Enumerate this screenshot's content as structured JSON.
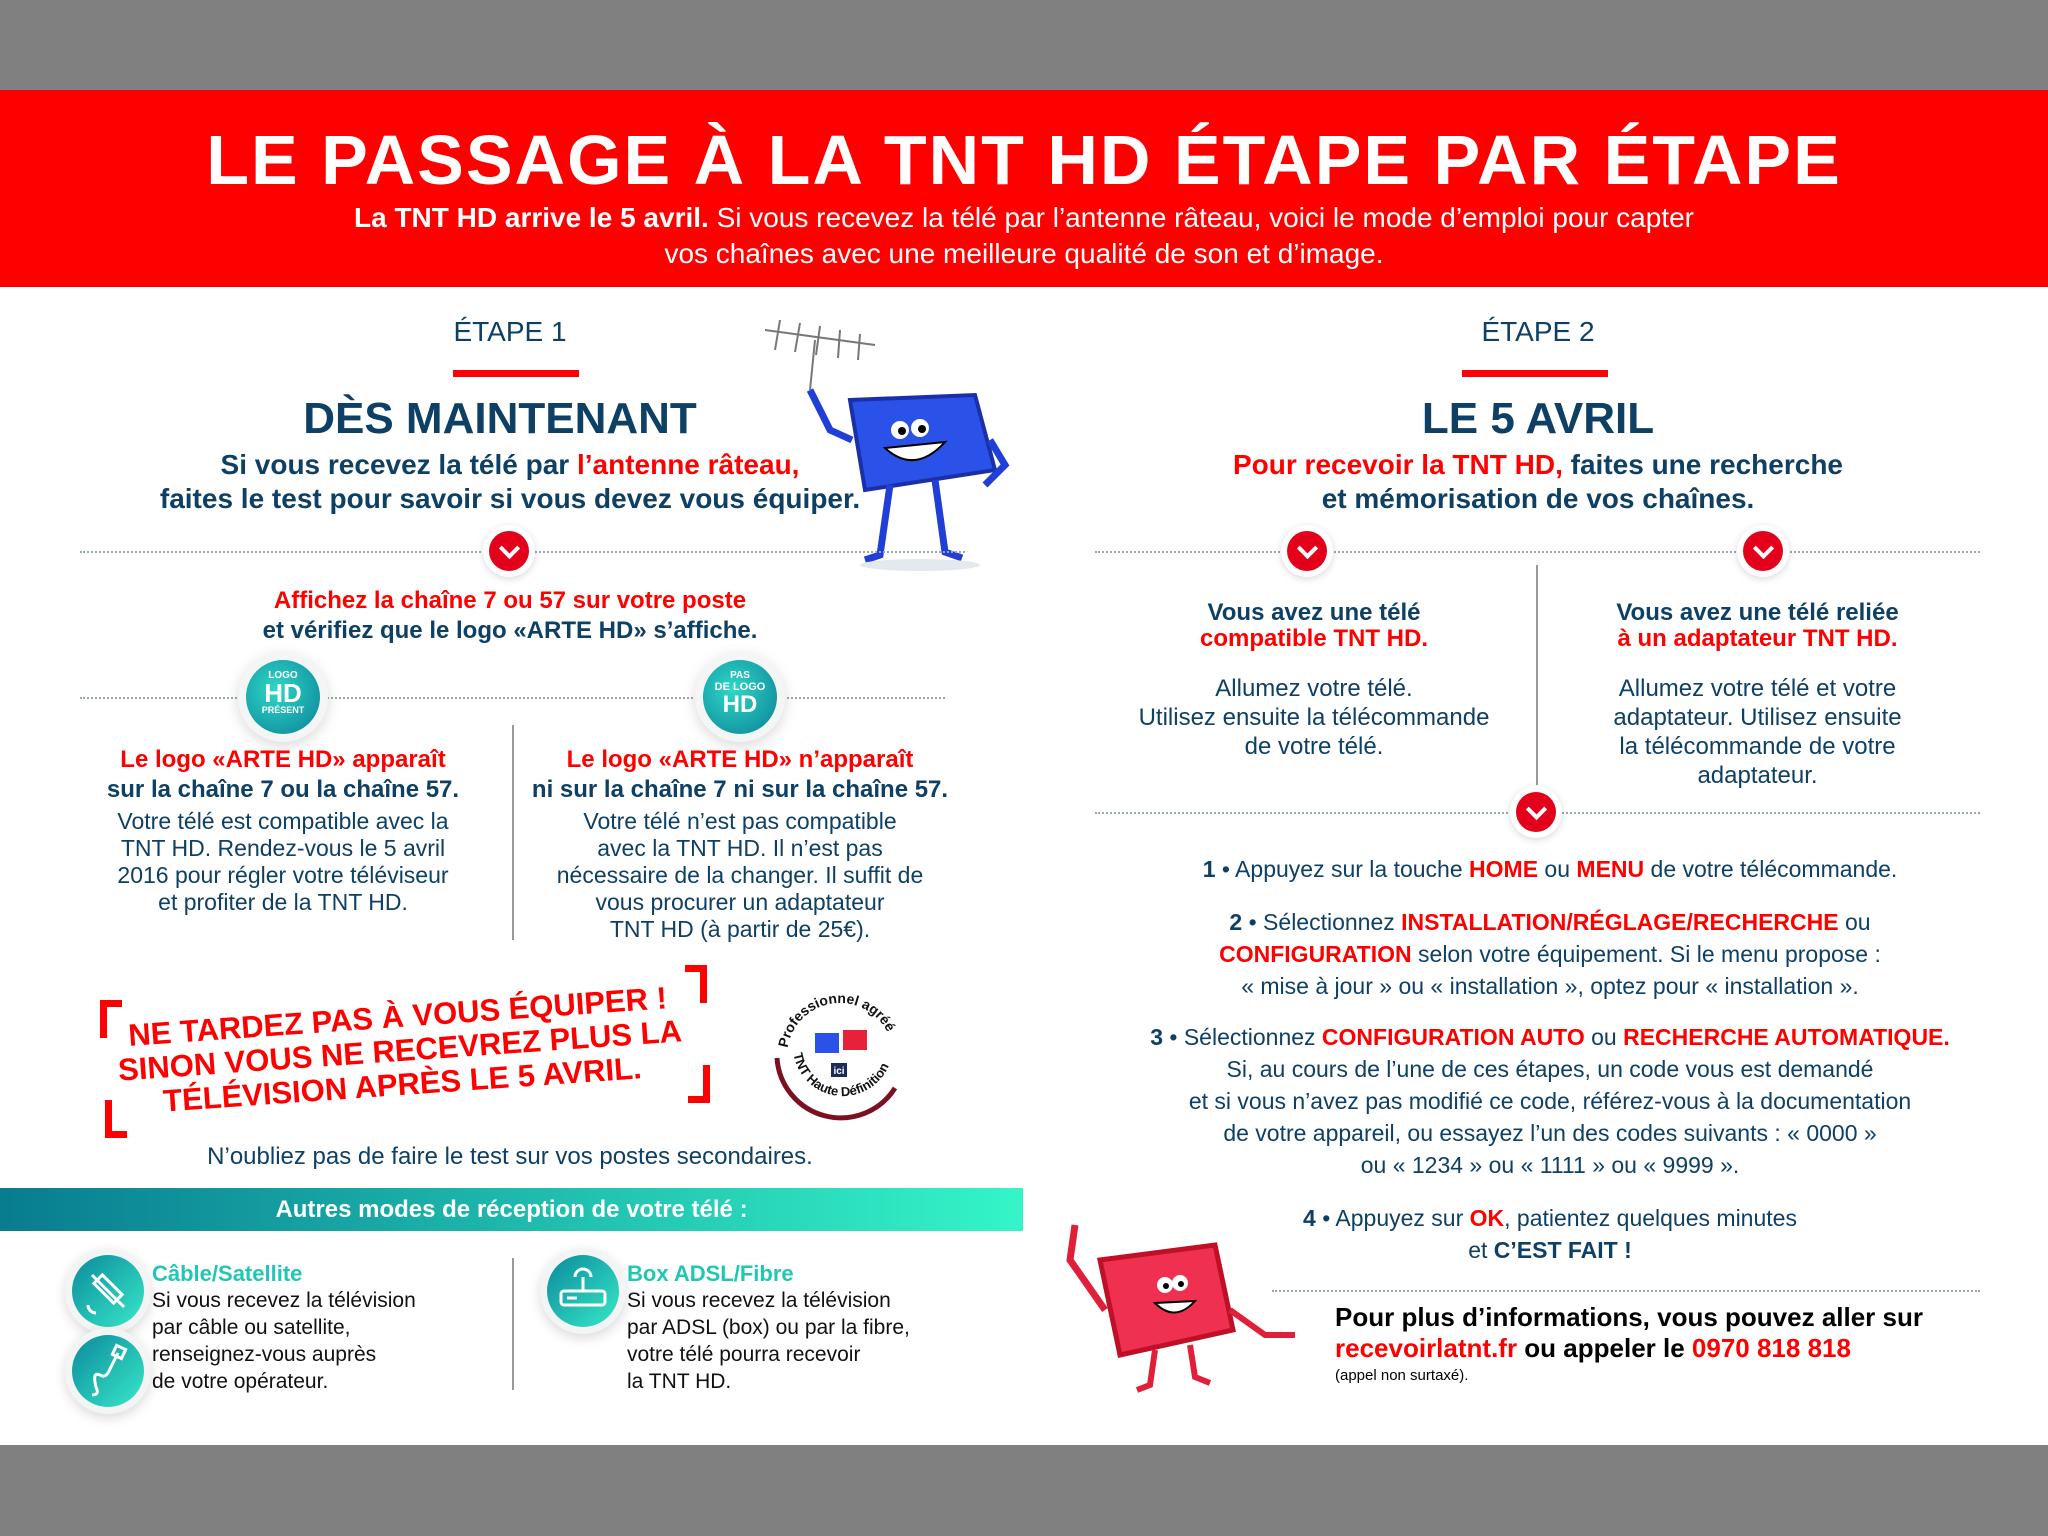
{
  "header": {
    "title": "LE PASSAGE À LA TNT  HD ÉTAPE PAR ÉTAPE",
    "subtitle_bold": "La TNT HD arrive le 5 avril.",
    "subtitle_1": " Si vous recevez la télé par  l’antenne râteau, voici le mode d’emploi pour capter",
    "subtitle_2": "vos chaînes avec une meilleure  qualité de son et d’image."
  },
  "step1": {
    "label": "ÉTAPE 1",
    "title": "DÈS MAINTENANT",
    "intro_1a": "Si vous recevez la télé par ",
    "intro_1b": "l’antenne râteau,",
    "intro_2": "faites le test pour savoir si vous devez vous équiper.",
    "check_1": "Affichez la chaîne 7 ou 57 sur votre poste",
    "check_2": "et vérifiez que le logo «ARTE HD» s’affiche.",
    "badge_left": [
      "LOGO",
      "HD",
      "PRÉSENT"
    ],
    "badge_right": [
      "PAS",
      "DE LOGO",
      "HD"
    ],
    "left": {
      "h1": "Le logo «ARTE HD» apparaît",
      "h2": "sur la chaîne 7 ou la chaîne 57.",
      "lines": [
        "Votre télé est compatible avec la",
        "TNT HD. Rendez-vous le 5 avril",
        "2016 pour régler votre téléviseur",
        "et profiter de la TNT HD."
      ]
    },
    "right": {
      "h1": "Le logo «ARTE HD» n’apparaît",
      "h2": "ni sur la chaîne 7 ni sur la chaîne 57.",
      "lines": [
        "Votre télé n’est pas compatible",
        "avec la TNT HD. Il n’est pas",
        "nécessaire de la changer. Il suffit de",
        "vous procurer un adaptateur",
        "TNT HD (à partir de 25€)."
      ]
    },
    "warning": [
      "NE TARDEZ PAS À VOUS ÉQUIPER !",
      "SINON VOUS NE RECEVREZ PLUS LA",
      "TÉLÉVISION APRÈS LE 5 AVRIL."
    ],
    "seal": {
      "top": "Professionnel agréé",
      "bottom": "TNT Haute Définition",
      "center": "ici"
    },
    "reminder": "N’oubliez pas de faire le test sur vos postes secondaires."
  },
  "other": {
    "title": "Autres modes de réception de votre télé :",
    "cable": {
      "title": "Câble/Satellite",
      "lines": [
        "Si vous recevez la télévision",
        "par câble ou satellite,",
        "renseignez-vous auprès",
        "de votre opérateur."
      ]
    },
    "box": {
      "title": "Box ADSL/Fibre",
      "lines": [
        "Si vous recevez la télévision",
        "par ADSL (box) ou par la fibre,",
        "votre télé pourra recevoir",
        "la TNT HD."
      ]
    }
  },
  "step2": {
    "label": "ÉTAPE 2",
    "title": "LE 5 AVRIL",
    "intro_1a": "Pour recevoir la TNT HD,",
    "intro_1b": " faites une recherche",
    "intro_2": "et mémorisation de vos chaînes.",
    "left": {
      "h1": "Vous avez une télé",
      "h2": "compatible TNT HD.",
      "lines": [
        "Allumez votre télé.",
        "Utilisez ensuite la télécommande",
        "de votre télé."
      ]
    },
    "right": {
      "h1": "Vous avez une télé reliée",
      "h2": "à un adaptateur TNT HD.",
      "lines": [
        "Allumez votre télé et votre",
        "adaptateur. Utilisez ensuite",
        "la télécommande de votre",
        "adaptateur."
      ]
    },
    "s1": {
      "n": "1",
      "a": " Appuyez sur la touche ",
      "k1": "HOME",
      "b": " ou ",
      "k2": "MENU",
      "c": " de votre télécommande."
    },
    "s2": {
      "n": "2",
      "a": " Sélectionnez ",
      "k1": "INSTALLATION/RÉGLAGE/RECHERCHE",
      "b": " ou",
      "k2": "CONFIGURATION",
      "c": " selon votre équipement. Si le menu propose :",
      "d": "« mise à jour » ou « installation », optez pour « installation »."
    },
    "s3": {
      "n": "3",
      "a": " Sélectionnez ",
      "k1": "CONFIGURATION AUTO",
      "b": " ou ",
      "k2": "RECHERCHE AUTOMATIQUE.",
      "lines": [
        "Si, au cours de l’une de ces étapes, un code vous est demandé",
        "et si vous n’avez pas modifié ce code, référez-vous à la documentation",
        "de votre appareil, ou essayez l’un des codes suivants : « 0000 »",
        "ou « 1234 » ou « 1111 » ou « 9999 »."
      ]
    },
    "s4": {
      "n": "4",
      "a": " Appuyez sur ",
      "k1": "OK",
      "b": ", patientez quelques minutes",
      "c": "et ",
      "k2": "C’EST FAIT !"
    },
    "info": {
      "a": "Pour plus d’informations, vous pouvez aller sur",
      "link": "recevoirlatnt.fr",
      "b": " ou appeler le ",
      "phone": "0970 818 818",
      "note": "(appel non surtaxé)."
    }
  },
  "colors": {
    "red": "#ff0000",
    "navy": "#0e3f64",
    "teal_start": "#087c90",
    "teal_end": "#34f5c8"
  }
}
